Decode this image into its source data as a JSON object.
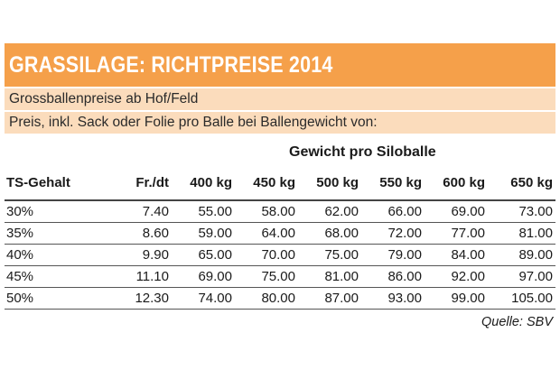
{
  "title": "GRASSILAGE: RICHTPREISE 2014",
  "subtitle_1": "Grossballenpreise ab Hof/Feld",
  "subtitle_2": "Preis, inkl. Sack oder Folie pro Balle bei Ballengewicht von:",
  "group_header": "Gewicht pro Siloballe",
  "columns": [
    "TS-Gehalt",
    "Fr./dt",
    "400 kg",
    "450 kg",
    "500 kg",
    "550 kg",
    "600 kg",
    "650 kg"
  ],
  "rows": [
    [
      "30%",
      "7.40",
      "55.00",
      "58.00",
      "62.00",
      "66.00",
      "69.00",
      "73.00"
    ],
    [
      "35%",
      "8.60",
      "59.00",
      "64.00",
      "68.00",
      "72.00",
      "77.00",
      "81.00"
    ],
    [
      "40%",
      "9.90",
      "65.00",
      "70.00",
      "75.00",
      "79.00",
      "84.00",
      "89.00"
    ],
    [
      "45%",
      "11.10",
      "69.00",
      "75.00",
      "81.00",
      "86.00",
      "92.00",
      "97.00"
    ],
    [
      "50%",
      "12.30",
      "74.00",
      "80.00",
      "87.00",
      "93.00",
      "99.00",
      "105.00"
    ]
  ],
  "source": "Quelle:  SBV",
  "colors": {
    "title_bg": "#f5a04a",
    "subtitle_bg": "#fbdcbc",
    "title_text": "#ffffff"
  }
}
